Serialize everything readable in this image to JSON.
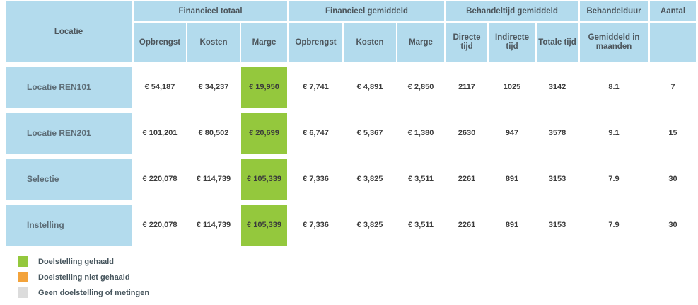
{
  "colors": {
    "header_blue": "#b3dbed",
    "goal_achieved_green": "#94c83d",
    "goal_missed_orange": "#f3a33b",
    "no_goal_gray": "#dcdcdc"
  },
  "table": {
    "corner_label": "Locatie",
    "groups": [
      {
        "label": "Financieel totaal",
        "cols": [
          "Opbrengst",
          "Kosten",
          "Marge"
        ]
      },
      {
        "label": "Financieel gemiddeld",
        "cols": [
          "Opbrengst",
          "Kosten",
          "Marge"
        ]
      },
      {
        "label": "Behandeltijd gemiddeld",
        "cols": [
          "Directe tijd",
          "Indirecte tijd",
          "Totale tijd"
        ]
      },
      {
        "label": "Behandelduur",
        "cols": [
          "Gemiddeld in maanden"
        ]
      },
      {
        "label": "Aantal",
        "cols": [
          ""
        ]
      }
    ],
    "rows": [
      {
        "label": "Locatie REN101",
        "values": [
          "€ 54,187",
          "€ 34,237",
          "€ 19,950",
          "€ 7,741",
          "€ 4,891",
          "€ 2,850",
          "2117",
          "1025",
          "3142",
          "8.1",
          "7"
        ],
        "marge_status": "gehaald"
      },
      {
        "label": "Locatie REN201",
        "values": [
          "€ 101,201",
          "€ 80,502",
          "€ 20,699",
          "€ 6,747",
          "€ 5,367",
          "€ 1,380",
          "2630",
          "947",
          "3578",
          "9.1",
          "15"
        ],
        "marge_status": "gehaald"
      },
      {
        "label": "Selectie",
        "values": [
          "€ 220,078",
          "€ 114,739",
          "€ 105,339",
          "€ 7,336",
          "€ 3,825",
          "€ 3,511",
          "2261",
          "891",
          "3153",
          "7.9",
          "30"
        ],
        "marge_status": "gehaald"
      },
      {
        "label": "Instelling",
        "values": [
          "€ 220,078",
          "€ 114,739",
          "€ 105,339",
          "€ 7,336",
          "€ 3,825",
          "€ 3,511",
          "2261",
          "891",
          "3153",
          "7.9",
          "30"
        ],
        "marge_status": "gehaald"
      }
    ]
  },
  "legend": [
    {
      "label": "Doelstelling gehaald",
      "color": "#94c83d"
    },
    {
      "label": "Doelstelling niet gehaald",
      "color": "#f3a33b"
    },
    {
      "label": "Geen doelstelling of metingen",
      "color": "#dcdcdc"
    }
  ]
}
